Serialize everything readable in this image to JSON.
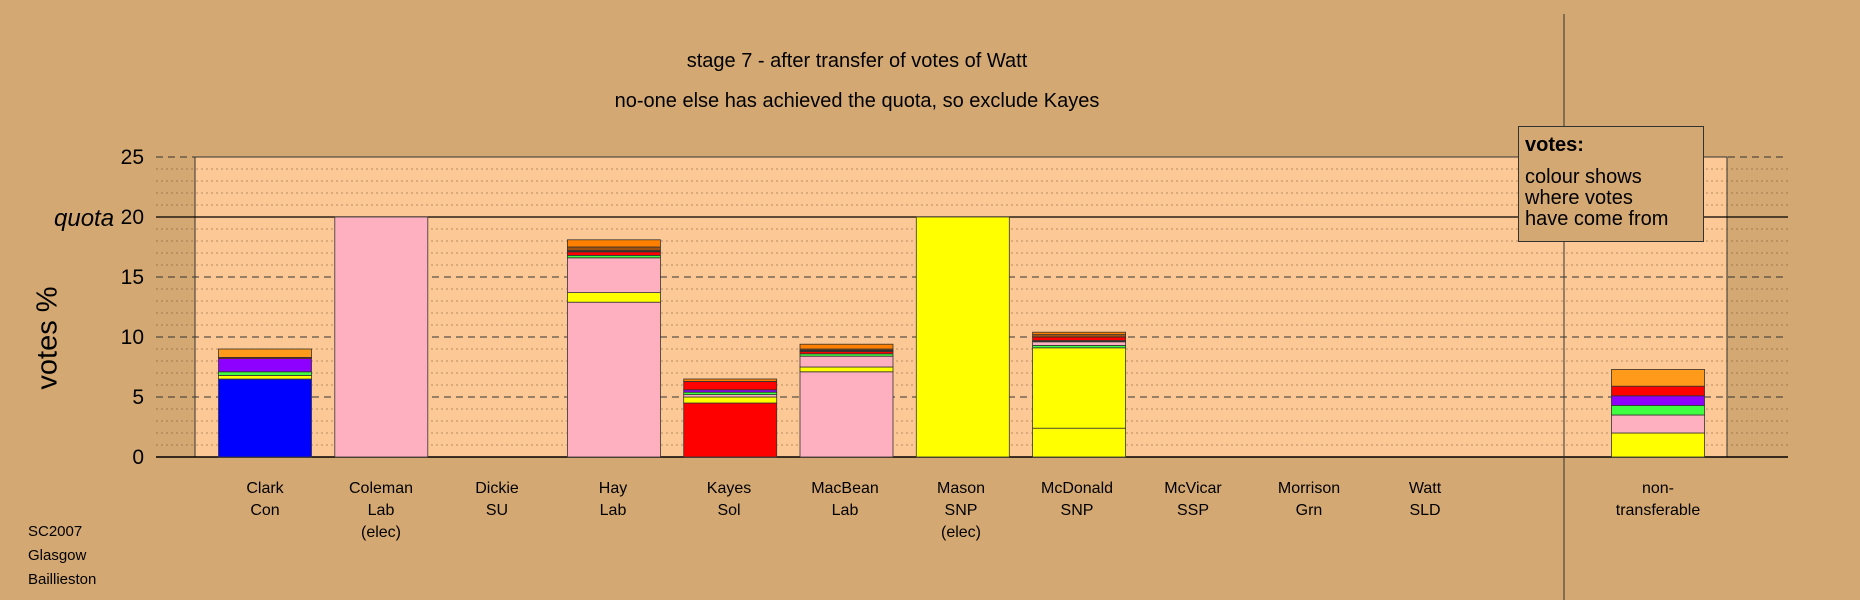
{
  "titles": {
    "line1": "stage 7 - after transfer of votes of Watt",
    "line2": "no-one else has achieved the quota, so exclude Kayes"
  },
  "source": [
    "SC2007",
    "Glasgow",
    "Baillieston"
  ],
  "legend": {
    "heading": "votes:",
    "lines": [
      "colour shows",
      "where votes",
      "have come from"
    ]
  },
  "colors": {
    "background": "#d4a872",
    "plot_area": "#fcc896",
    "Con": "#0000ff",
    "Lab": "#ffb0c0",
    "SNP": "#ffff00",
    "Sol": "#ff0000",
    "SSP": "#ff7f00",
    "SLD": "#ff9a1a",
    "SU": "#8e00ff",
    "Grn": "#40ff40",
    "Con_alt": "#8020a0",
    "misc_brown": "#a05010",
    "misc_dark": "#303030"
  },
  "chart_data": {
    "type": "bar",
    "stacked": true,
    "ylabel": "votes %",
    "ylim": [
      0,
      25
    ],
    "yticks": [
      0,
      5,
      10,
      15,
      20,
      25
    ],
    "quota": 20,
    "quota_label": "quota",
    "grid": true,
    "categories": [
      {
        "name": "Clark",
        "party": "Con",
        "note": ""
      },
      {
        "name": "Coleman",
        "party": "Lab",
        "note": "(elec)"
      },
      {
        "name": "Dickie",
        "party": "SU",
        "note": ""
      },
      {
        "name": "Hay",
        "party": "Lab",
        "note": ""
      },
      {
        "name": "Kayes",
        "party": "Sol",
        "note": ""
      },
      {
        "name": "MacBean",
        "party": "Lab",
        "note": ""
      },
      {
        "name": "Mason",
        "party": "SNP",
        "note": "(elec)"
      },
      {
        "name": "McDonald",
        "party": "SNP",
        "note": ""
      },
      {
        "name": "McVicar",
        "party": "SSP",
        "note": ""
      },
      {
        "name": "Morrison",
        "party": "Grn",
        "note": ""
      },
      {
        "name": "Watt",
        "party": "SLD",
        "note": ""
      }
    ],
    "nontransferable_label": [
      "non-",
      "transferable"
    ],
    "stacks": [
      [
        {
          "v": 6.5,
          "c": "Con"
        },
        {
          "v": 0.3,
          "c": "SNP"
        },
        {
          "v": 0.3,
          "c": "Grn"
        },
        {
          "v": 1.1,
          "c": "SU"
        },
        {
          "v": 0.1,
          "c": "Sol"
        },
        {
          "v": 0.7,
          "c": "SLD"
        }
      ],
      [
        {
          "v": 20.0,
          "c": "Lab"
        }
      ],
      [],
      [
        {
          "v": 12.9,
          "c": "Lab"
        },
        {
          "v": 0.8,
          "c": "SNP"
        },
        {
          "v": 2.9,
          "c": "Lab"
        },
        {
          "v": 0.2,
          "c": "Grn"
        },
        {
          "v": 0.3,
          "c": "Sol"
        },
        {
          "v": 0.1,
          "c": "misc_dark"
        },
        {
          "v": 0.3,
          "c": "misc_brown"
        },
        {
          "v": 0.6,
          "c": "SSP"
        }
      ],
      [
        {
          "v": 4.5,
          "c": "Sol"
        },
        {
          "v": 0.5,
          "c": "SNP"
        },
        {
          "v": 0.2,
          "c": "Lab"
        },
        {
          "v": 0.2,
          "c": "Grn"
        },
        {
          "v": 0.2,
          "c": "SU"
        },
        {
          "v": 0.7,
          "c": "Sol"
        },
        {
          "v": 0.2,
          "c": "SSP"
        }
      ],
      [
        {
          "v": 7.1,
          "c": "Lab"
        },
        {
          "v": 0.4,
          "c": "SNP"
        },
        {
          "v": 0.9,
          "c": "Lab"
        },
        {
          "v": 0.2,
          "c": "Grn"
        },
        {
          "v": 0.2,
          "c": "Sol"
        },
        {
          "v": 0.1,
          "c": "misc_dark"
        },
        {
          "v": 0.1,
          "c": "misc_brown"
        },
        {
          "v": 0.4,
          "c": "SSP"
        }
      ],
      [
        {
          "v": 20.0,
          "c": "SNP"
        }
      ],
      [
        {
          "v": 2.4,
          "c": "SNP"
        },
        {
          "v": 6.7,
          "c": "SNP"
        },
        {
          "v": 0.2,
          "c": "Grn"
        },
        {
          "v": 0.3,
          "c": "Lab"
        },
        {
          "v": 0.1,
          "c": "misc_dark"
        },
        {
          "v": 0.3,
          "c": "Sol"
        },
        {
          "v": 0.2,
          "c": "misc_brown"
        },
        {
          "v": 0.2,
          "c": "SSP"
        }
      ],
      [],
      [],
      []
    ],
    "nontransferable": [
      {
        "v": 2.0,
        "c": "SNP"
      },
      {
        "v": 1.5,
        "c": "Lab"
      },
      {
        "v": 0.8,
        "c": "Grn"
      },
      {
        "v": 0.8,
        "c": "SU"
      },
      {
        "v": 0.8,
        "c": "Sol"
      },
      {
        "v": 1.4,
        "c": "SLD"
      }
    ]
  }
}
